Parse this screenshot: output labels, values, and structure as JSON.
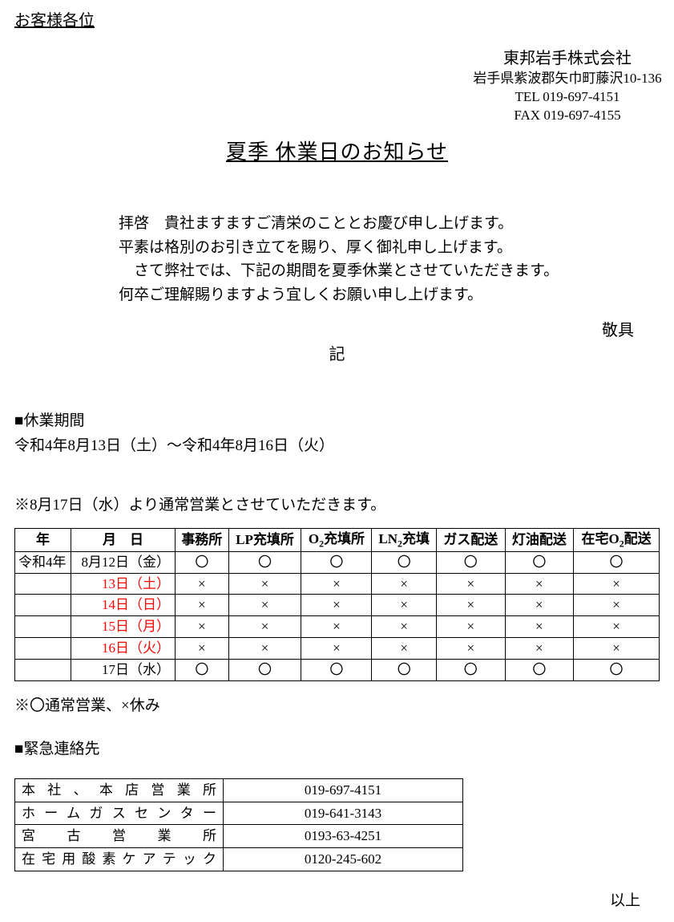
{
  "addressee": "お客様各位",
  "company": {
    "name": "東邦岩手株式会社",
    "address": "岩手県紫波郡矢巾町藤沢10-136",
    "tel": "TEL 019-697-4151",
    "fax": "FAX 019-697-4155"
  },
  "title": "夏季 休業日のお知らせ",
  "greeting": {
    "l1": "拝啓　貴社ますますご清栄のこととお慶び申し上げます。",
    "l2": "平素は格別のお引き立てを賜り、厚く御礼申し上げます。",
    "l3": "　さて弊社では、下記の期間を夏季休業とさせていただきます。",
    "l4": "何卒ご理解賜りますよう宜しくお願い申し上げます。"
  },
  "keigu": "敬具",
  "ki": "記",
  "closure": {
    "label": "■休業期間",
    "range": "令和4年8月13日（土）～令和4年8月16日（火）"
  },
  "resume_note": "※8月17日（水）より通常営業とさせていただきます。",
  "schedule": {
    "columns": [
      "年",
      "月　日",
      "事務所",
      "LP充填所",
      "O₂充填所",
      "LN₂充填",
      "ガス配送",
      "灯油配送",
      "在宅O₂配送"
    ],
    "year": "令和4年",
    "rows": [
      {
        "date": "8月12日（金）",
        "red": false,
        "marks": [
          "〇",
          "〇",
          "〇",
          "〇",
          "〇",
          "〇",
          "〇"
        ]
      },
      {
        "date": "13日（土）",
        "red": true,
        "marks": [
          "×",
          "×",
          "×",
          "×",
          "×",
          "×",
          "×"
        ]
      },
      {
        "date": "14日（日）",
        "red": true,
        "marks": [
          "×",
          "×",
          "×",
          "×",
          "×",
          "×",
          "×"
        ]
      },
      {
        "date": "15日（月）",
        "red": true,
        "marks": [
          "×",
          "×",
          "×",
          "×",
          "×",
          "×",
          "×"
        ]
      },
      {
        "date": "16日（火）",
        "red": true,
        "marks": [
          "×",
          "×",
          "×",
          "×",
          "×",
          "×",
          "×"
        ]
      },
      {
        "date": "17日（水）",
        "red": false,
        "marks": [
          "〇",
          "〇",
          "〇",
          "〇",
          "〇",
          "〇",
          "〇"
        ]
      }
    ]
  },
  "legend": "※〇通常営業、×休み",
  "contacts": {
    "label": "■緊急連絡先",
    "rows": [
      {
        "name": "本社、本店営業所",
        "phone": "019-697-4151"
      },
      {
        "name": "ホームガスセンター",
        "phone": "019-641-3143"
      },
      {
        "name": "宮古営業所",
        "phone": "0193-63-4251"
      },
      {
        "name": "在宅用酸素ケアテック",
        "phone": "0120-245-602"
      }
    ]
  },
  "ijou": "以上"
}
